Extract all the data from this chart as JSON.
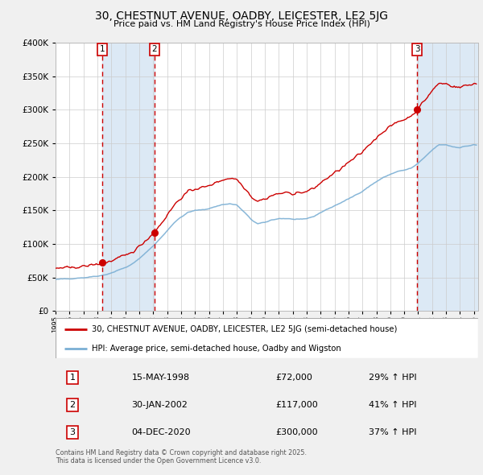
{
  "title_line1": "30, CHESTNUT AVENUE, OADBY, LEICESTER, LE2 5JG",
  "title_line2": "Price paid vs. HM Land Registry's House Price Index (HPI)",
  "legend_line1": "30, CHESTNUT AVENUE, OADBY, LEICESTER, LE2 5JG (semi-detached house)",
  "legend_line2": "HPI: Average price, semi-detached house, Oadby and Wigston",
  "sale1_label": "1",
  "sale1_date": "15-MAY-1998",
  "sale1_price_text": "£72,000",
  "sale1_hpi_text": "29% ↑ HPI",
  "sale2_label": "2",
  "sale2_date": "30-JAN-2002",
  "sale2_price_text": "£117,000",
  "sale2_hpi_text": "41% ↑ HPI",
  "sale3_label": "3",
  "sale3_date": "04-DEC-2020",
  "sale3_price_text": "£300,000",
  "sale3_hpi_text": "37% ↑ HPI",
  "footer": "Contains HM Land Registry data © Crown copyright and database right 2025.\nThis data is licensed under the Open Government Licence v3.0.",
  "red_color": "#cc0000",
  "blue_color": "#7bafd4",
  "shade_color": "#dce9f5",
  "bg_color": "#f0f0f0",
  "chart_bg": "#ffffff",
  "grid_color": "#cccccc",
  "sale1_year": 1998.37,
  "sale1_price": 72000,
  "sale2_year": 2002.08,
  "sale2_price": 117000,
  "sale3_year": 2020.92,
  "sale3_price": 300000,
  "ylim_max": 400000,
  "ylim_min": 0,
  "hpi_anchors_x": [
    1995.0,
    1996.0,
    1997.0,
    1997.5,
    1998.0,
    1998.5,
    1999.0,
    1999.5,
    2000.0,
    2000.5,
    2001.0,
    2001.5,
    2002.0,
    2002.5,
    2003.0,
    2003.5,
    2004.0,
    2004.5,
    2005.0,
    2005.5,
    2006.0,
    2006.5,
    2007.0,
    2007.5,
    2008.0,
    2008.5,
    2009.0,
    2009.5,
    2010.0,
    2010.5,
    2011.0,
    2011.5,
    2012.0,
    2012.5,
    2013.0,
    2013.5,
    2014.0,
    2014.5,
    2015.0,
    2015.5,
    2016.0,
    2016.5,
    2017.0,
    2017.5,
    2018.0,
    2018.5,
    2019.0,
    2019.5,
    2020.0,
    2020.5,
    2021.0,
    2021.5,
    2022.0,
    2022.5,
    2023.0,
    2023.5,
    2024.0,
    2024.5,
    2025.0,
    2025.2
  ],
  "hpi_anchors_y": [
    47000,
    48500,
    50000,
    51000,
    52500,
    54000,
    57000,
    61000,
    65000,
    70000,
    78000,
    88000,
    97000,
    108000,
    120000,
    132000,
    140000,
    147000,
    150000,
    151000,
    153000,
    156000,
    159000,
    160000,
    158000,
    148000,
    137000,
    130000,
    132000,
    136000,
    138000,
    138000,
    137000,
    136000,
    138000,
    141000,
    147000,
    152000,
    157000,
    162000,
    167000,
    173000,
    179000,
    186000,
    193000,
    199000,
    204000,
    208000,
    210000,
    213000,
    220000,
    230000,
    240000,
    248000,
    248000,
    245000,
    244000,
    246000,
    248000,
    247000
  ]
}
